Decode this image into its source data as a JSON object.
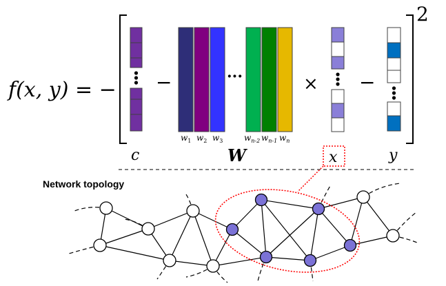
{
  "equation": {
    "lhs": "f(x, y) = −",
    "minus_1": "−",
    "ellipsis": "···",
    "times": "×",
    "minus_2": "−",
    "exponent": "2",
    "vertical_dots": "⋮"
  },
  "labels": {
    "c": "c",
    "W": "W",
    "x": "x",
    "y": "y"
  },
  "weight_labels": [
    {
      "base": "w",
      "sub": "1"
    },
    {
      "base": "w",
      "sub": "2"
    },
    {
      "base": "w",
      "sub": "3"
    },
    {
      "base": "w",
      "sub": "n-2"
    },
    {
      "base": "w",
      "sub": "n-1"
    },
    {
      "base": "w",
      "sub": "n"
    }
  ],
  "colors": {
    "c_vector": "#7030a0",
    "w1": "#2e2e78",
    "w2": "#800080",
    "w3": "#3333ff",
    "w_n_minus_2": "#00b050",
    "w_n_minus_1": "#008000",
    "w_n": "#e6b800",
    "x_cell": "#8a7fd8",
    "y_cell": "#0070c0",
    "node_highlight": "#7b72d6",
    "highlight_ring": "#ff0000"
  },
  "network": {
    "title": "Network topology"
  }
}
